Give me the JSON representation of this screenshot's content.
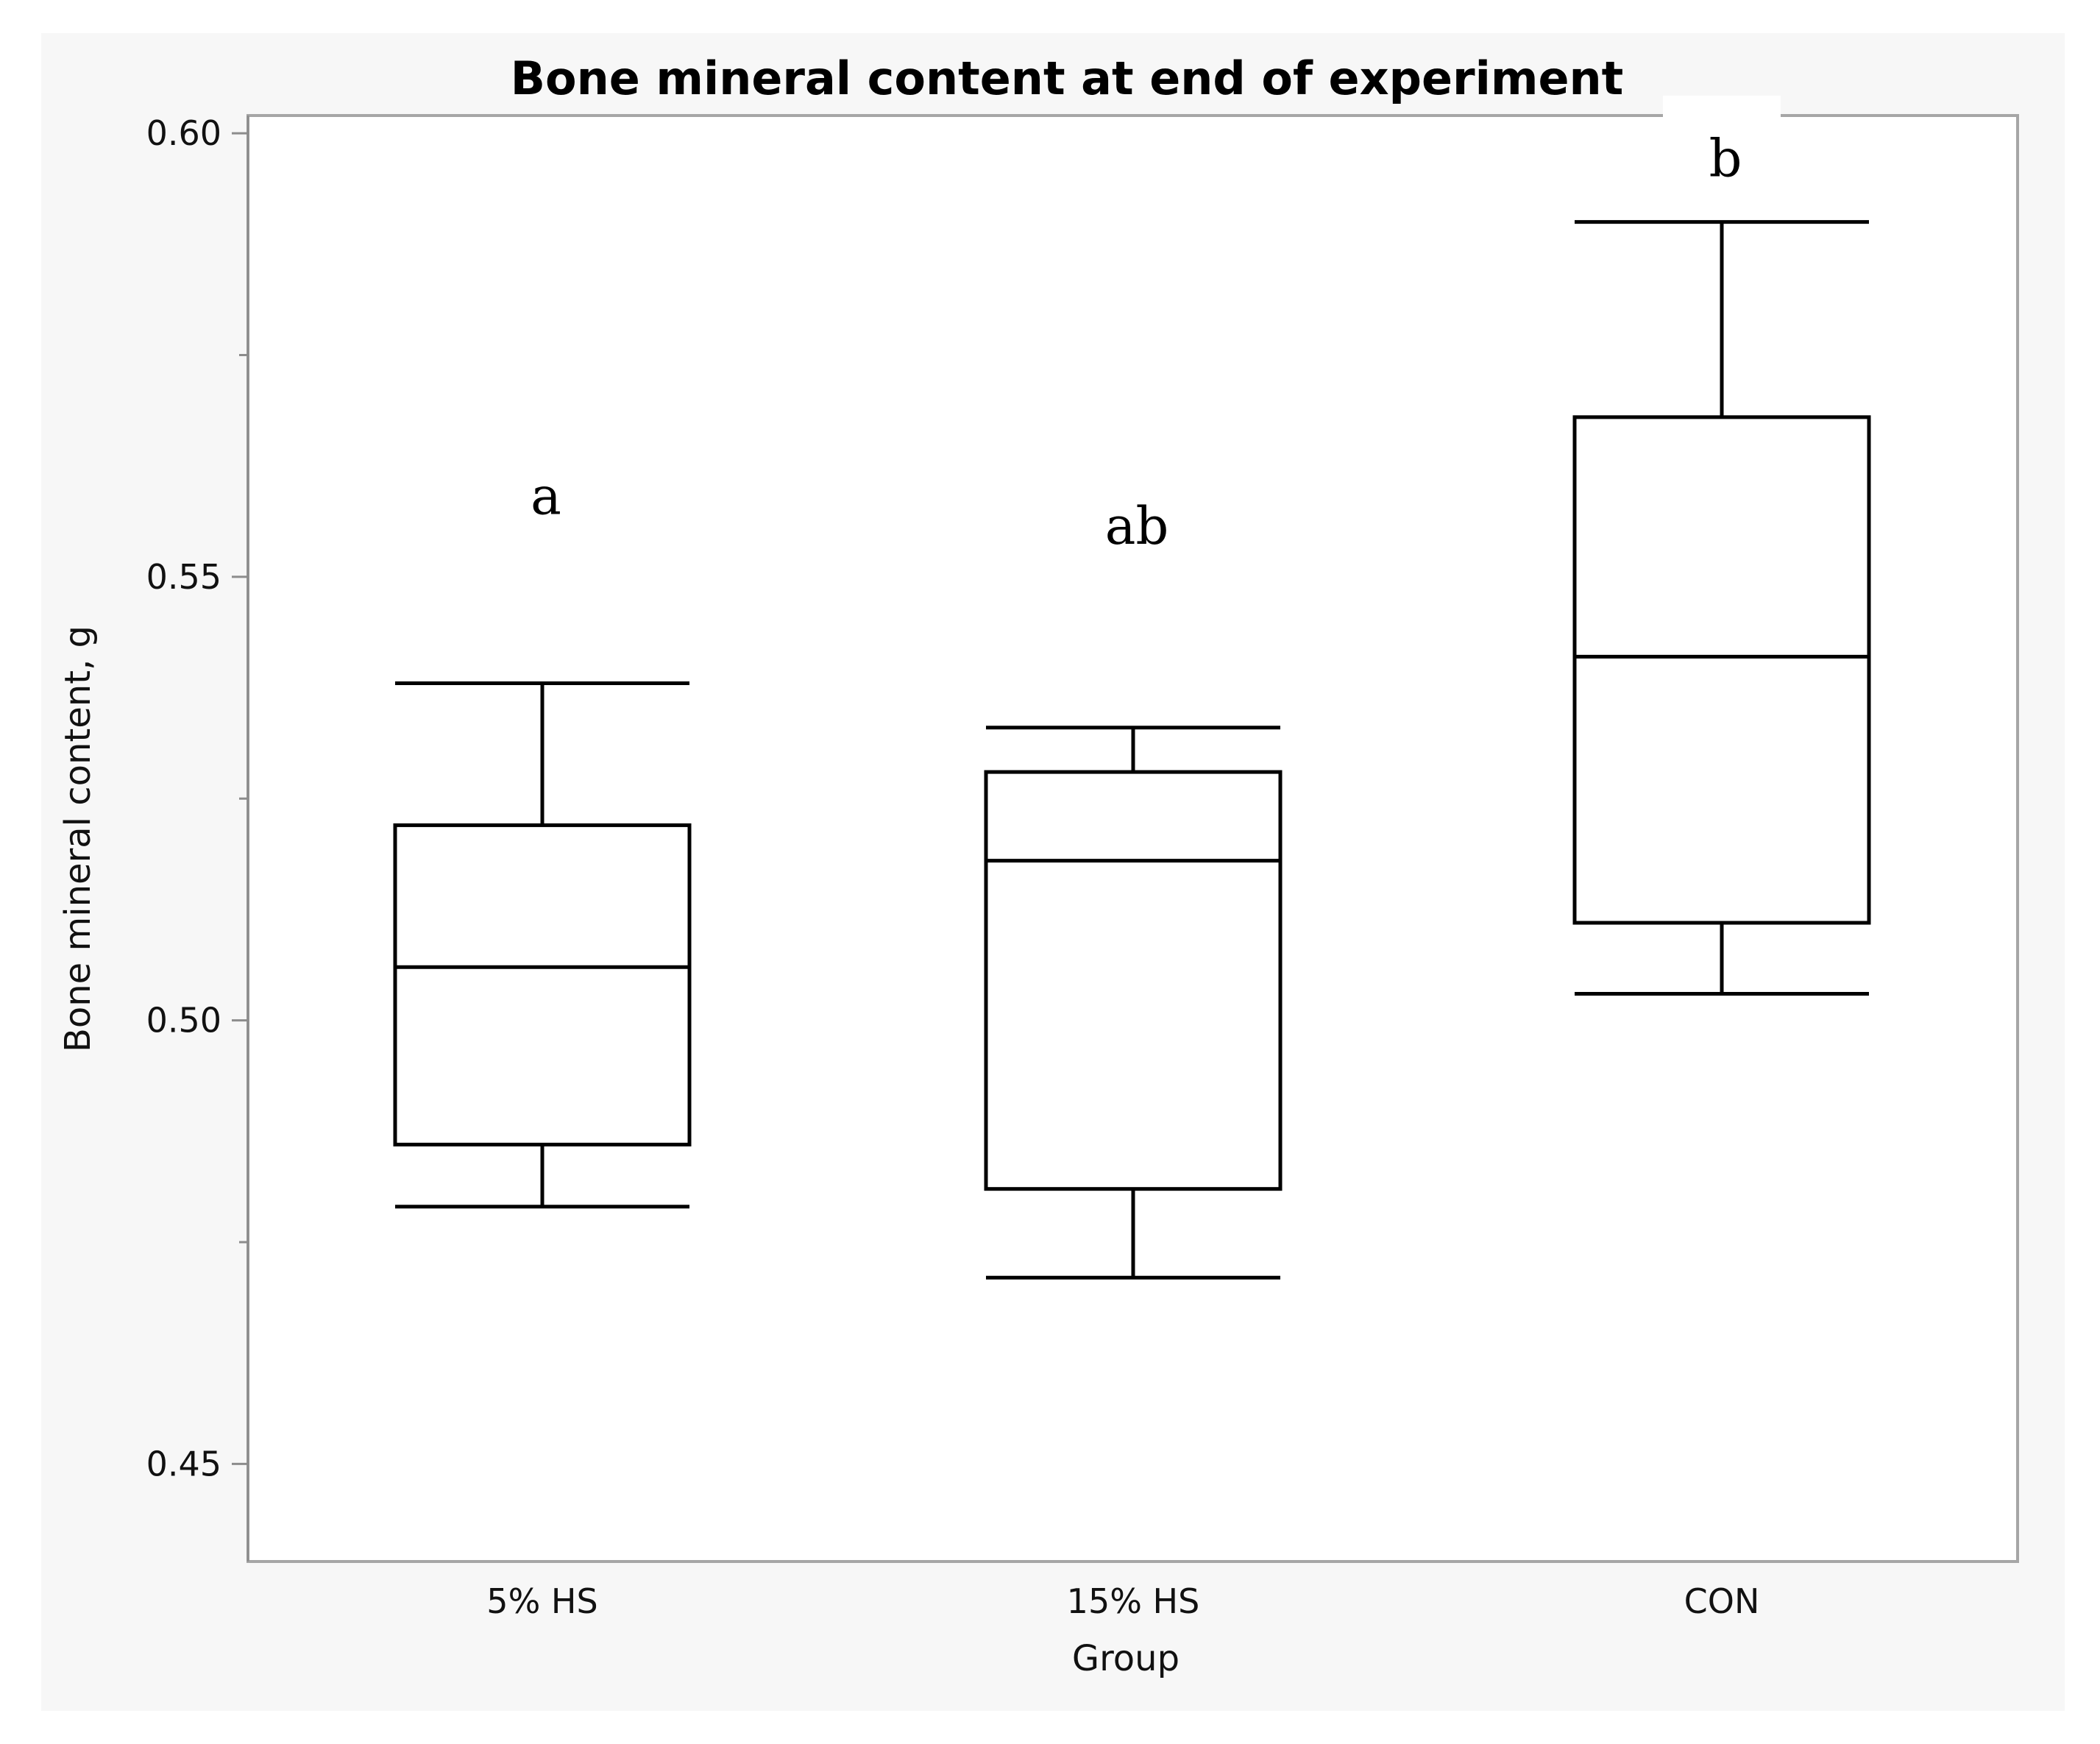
{
  "chart_data": {
    "type": "boxplot",
    "title": "Bone mineral content at end of experiment",
    "xlabel": "Group",
    "ylabel": "Bone mineral content, g",
    "ylim": [
      0.439,
      0.602
    ],
    "yticks": [
      "0.45",
      "0.50",
      "0.55",
      "0.60"
    ],
    "ytick_values": [
      0.45,
      0.5,
      0.55,
      0.6
    ],
    "minor_ticks": [
      0.475,
      0.525,
      0.575
    ],
    "grid": false,
    "categories": [
      "5% HS",
      "15% HS",
      "CON"
    ],
    "boxes": [
      {
        "category": "5% HS",
        "min": 0.479,
        "q1": 0.486,
        "median": 0.506,
        "q3": 0.522,
        "max": 0.538,
        "label": "a"
      },
      {
        "category": "15% HS",
        "min": 0.471,
        "q1": 0.481,
        "median": 0.518,
        "q3": 0.528,
        "max": 0.533,
        "label": "ab"
      },
      {
        "category": "CON",
        "min": 0.503,
        "q1": 0.511,
        "median": 0.541,
        "q3": 0.568,
        "max": 0.59,
        "label": "b"
      }
    ]
  }
}
